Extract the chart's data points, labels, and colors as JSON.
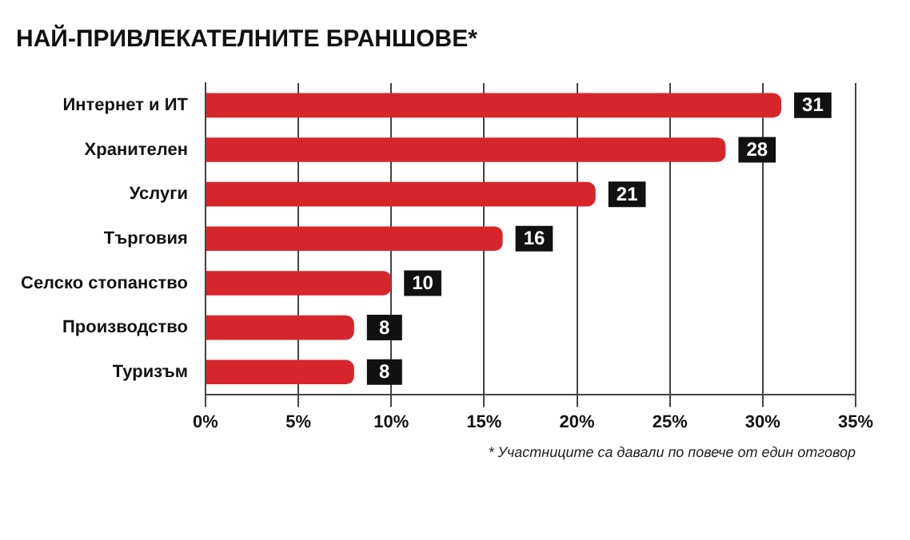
{
  "chart_data": {
    "type": "bar",
    "orientation": "horizontal",
    "title": "НАЙ-ПРИВЛЕКАТЕЛНИТЕ БРАНШОВЕ*",
    "categories": [
      "Интернет и ИТ",
      "Хранителен",
      "Услуги",
      "Търговия",
      "Селско стопанство",
      "Производство",
      "Туризъм"
    ],
    "values": [
      31,
      28,
      21,
      16,
      10,
      8,
      8
    ],
    "color": "#d7262b",
    "data_labels": true,
    "xlim": [
      0,
      35
    ],
    "xticks": [
      {
        "value": 0,
        "label": "0%"
      },
      {
        "value": 5,
        "label": "5%"
      },
      {
        "value": 10,
        "label": "10%"
      },
      {
        "value": 15,
        "label": "15%"
      },
      {
        "value": 20,
        "label": "20%"
      },
      {
        "value": 25,
        "label": "25%"
      },
      {
        "value": 30,
        "label": "30%"
      },
      {
        "value": 35,
        "label": "35%"
      }
    ],
    "grid": "x",
    "legend": false,
    "annotations": [
      "* Участниците са давали по повече от един отговор"
    ]
  }
}
